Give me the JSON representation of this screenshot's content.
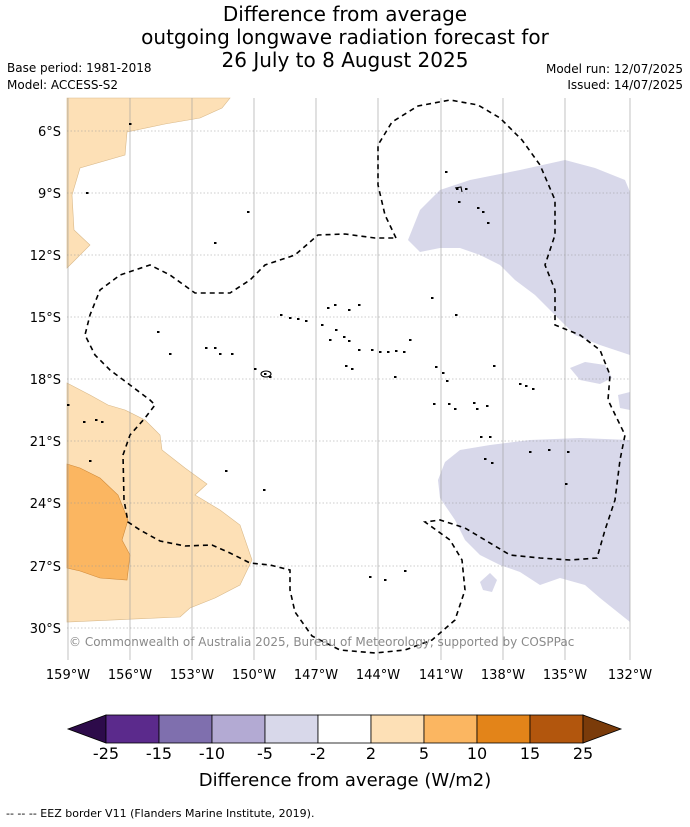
{
  "title": {
    "line1": "Difference from average",
    "line2": "outgoing longwave radiation forecast for",
    "line3": "26 July to 8 August 2025"
  },
  "meta": {
    "base_period": "Base period: 1981-2018",
    "model": "Model: ACCESS-S2",
    "model_run": "Model run: 12/07/2025",
    "issued": "Issued: 14/07/2025"
  },
  "map": {
    "lat_labels": [
      "6°S",
      "9°S",
      "12°S",
      "15°S",
      "18°S",
      "21°S",
      "24°S",
      "27°S",
      "30°S"
    ],
    "lon_labels": [
      "159°W",
      "156°W",
      "153°W",
      "150°W",
      "147°W",
      "144°W",
      "141°W",
      "138°W",
      "135°W",
      "132°W"
    ],
    "copyright": "© Commonwealth of Australia 2025, Bureau of Meteorology, supported by COSPPac"
  },
  "colorbar": {
    "ticks": [
      "-25",
      "-15",
      "-10",
      "-5",
      "-2",
      "2",
      "5",
      "10",
      "15",
      "25"
    ],
    "colors": {
      "under": "#2d0b4a",
      "bins": [
        "#5b2a8c",
        "#7f6fae",
        "#b3aad3",
        "#d8d8ea",
        "#ffffff",
        "#fde0b6",
        "#fbb661",
        "#e38419",
        "#b2560d"
      ],
      "over": "#7a3b0a"
    },
    "title": "Difference from average (W/m2)"
  },
  "footer": "--  --  -- EEZ border V11 (Flanders Marine Institute, 2019)."
}
